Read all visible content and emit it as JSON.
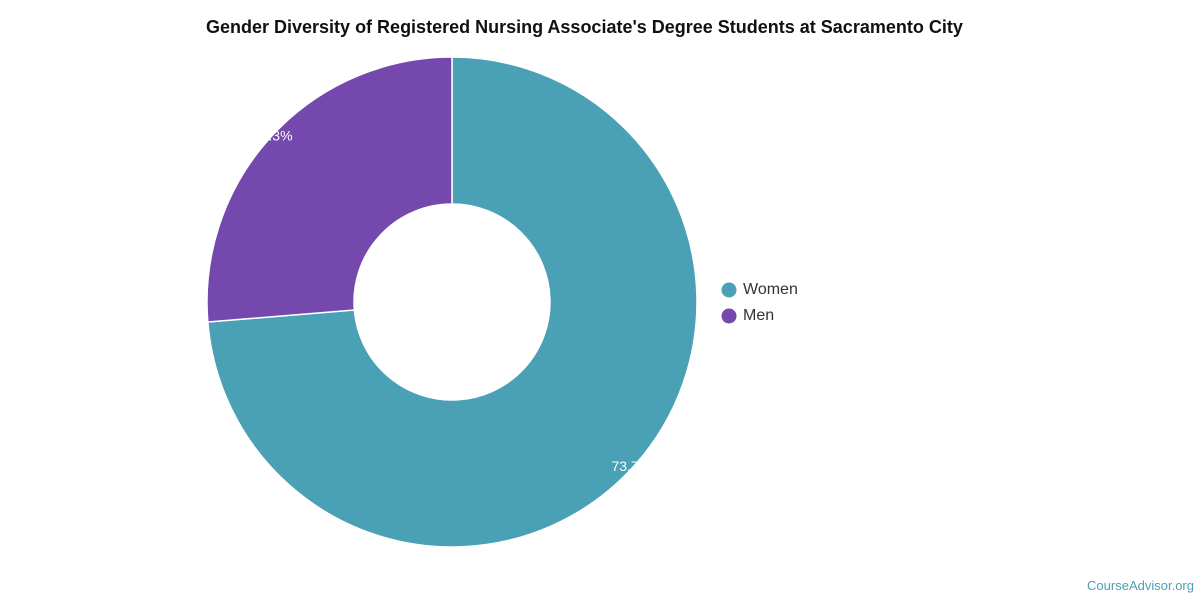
{
  "chart_data": {
    "type": "pie",
    "title": "Gender Diversity of Registered Nursing Associate's Degree Students at Sacramento City",
    "donut": true,
    "legend_position": "right",
    "slices": [
      {
        "label": "Women",
        "value": 73.7,
        "display": "73.7%",
        "color": "#4aa0b4"
      },
      {
        "label": "Men",
        "value": 26.3,
        "display": "26.3%",
        "color": "#7448ad"
      }
    ]
  },
  "watermark": "CourseAdvisor.org"
}
